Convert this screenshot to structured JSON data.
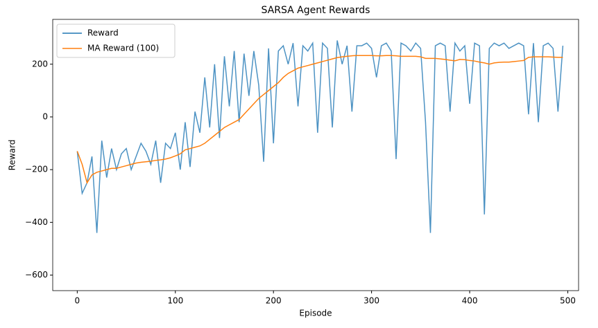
{
  "chart_data": {
    "type": "line",
    "title": "SARSA Agent Rewards",
    "xlabel": "Episode",
    "ylabel": "Reward",
    "x": [
      0,
      5,
      10,
      15,
      20,
      25,
      30,
      35,
      40,
      45,
      50,
      55,
      60,
      65,
      70,
      75,
      80,
      85,
      90,
      95,
      100,
      105,
      110,
      115,
      120,
      125,
      130,
      135,
      140,
      145,
      150,
      155,
      160,
      165,
      170,
      175,
      180,
      185,
      190,
      195,
      200,
      205,
      210,
      215,
      220,
      225,
      230,
      235,
      240,
      245,
      250,
      255,
      260,
      265,
      270,
      275,
      280,
      285,
      290,
      295,
      300,
      305,
      310,
      315,
      320,
      325,
      330,
      335,
      340,
      345,
      350,
      355,
      360,
      365,
      370,
      375,
      380,
      385,
      390,
      395,
      400,
      405,
      410,
      415,
      420,
      425,
      430,
      435,
      440,
      445,
      450,
      455,
      460,
      465,
      470,
      475,
      480,
      485,
      490,
      495
    ],
    "series": [
      {
        "name": "Reward",
        "color": "#1f77b4",
        "values": [
          -130,
          -290,
          -250,
          -150,
          -440,
          -90,
          -230,
          -120,
          -200,
          -140,
          -120,
          -200,
          -150,
          -100,
          -130,
          -180,
          -90,
          -250,
          -100,
          -120,
          -60,
          -200,
          -20,
          -190,
          20,
          -60,
          150,
          -40,
          200,
          -80,
          230,
          40,
          250,
          -20,
          240,
          80,
          250,
          120,
          -170,
          260,
          -100,
          250,
          270,
          200,
          280,
          40,
          270,
          250,
          280,
          -60,
          280,
          260,
          -40,
          290,
          200,
          270,
          20,
          270,
          270,
          280,
          260,
          150,
          270,
          280,
          250,
          -160,
          280,
          270,
          250,
          280,
          260,
          -20,
          -440,
          270,
          280,
          270,
          20,
          280,
          250,
          270,
          50,
          280,
          270,
          -370,
          260,
          280,
          270,
          280,
          260,
          270,
          280,
          270,
          10,
          280,
          -20,
          270,
          280,
          260,
          20,
          270
        ]
      },
      {
        "name": "MA Reward (100)",
        "color": "#ff7f0e",
        "values": [
          -130,
          -180,
          -250,
          -220,
          -210,
          -205,
          -200,
          -195,
          -195,
          -190,
          -185,
          -180,
          -175,
          -172,
          -170,
          -168,
          -165,
          -163,
          -160,
          -155,
          -148,
          -140,
          -125,
          -120,
          -115,
          -110,
          -100,
          -85,
          -70,
          -55,
          -40,
          -30,
          -20,
          -10,
          10,
          30,
          50,
          70,
          85,
          100,
          115,
          130,
          150,
          165,
          175,
          185,
          190,
          195,
          200,
          205,
          210,
          215,
          220,
          225,
          228,
          230,
          232,
          233,
          233,
          233,
          233,
          232,
          232,
          233,
          233,
          232,
          230,
          230,
          230,
          230,
          228,
          222,
          222,
          222,
          220,
          218,
          215,
          213,
          218,
          217,
          214,
          212,
          208,
          205,
          200,
          205,
          207,
          208,
          208,
          210,
          212,
          214,
          226,
          228,
          228,
          228,
          228,
          227,
          226,
          226
        ]
      }
    ],
    "xlim": [
      -25,
      511
    ],
    "ylim": [
      -659,
      370
    ],
    "xticks": [
      0,
      100,
      200,
      300,
      400,
      500
    ],
    "yticks": [
      {
        "value": -600,
        "label": "−600"
      },
      {
        "value": -400,
        "label": "−400"
      },
      {
        "value": -200,
        "label": "−200"
      },
      0,
      200
    ],
    "legend": "upper left"
  }
}
